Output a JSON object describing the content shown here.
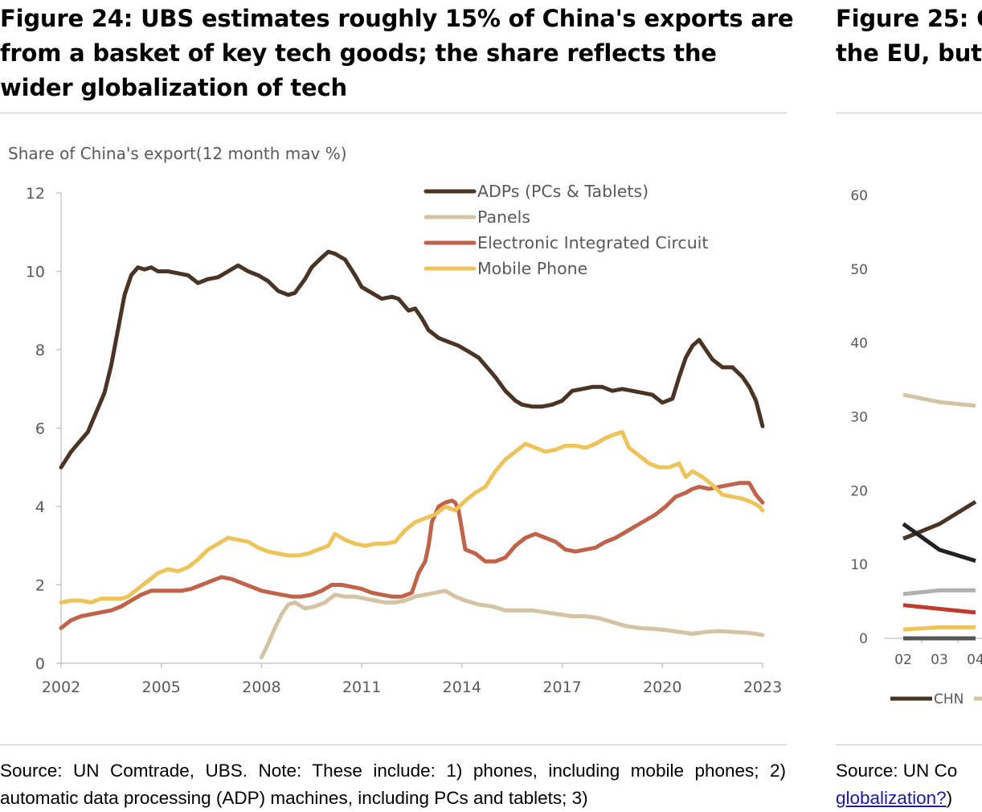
{
  "figure_left": {
    "title": "Figure 24: UBS estimates roughly 15% of China's exports are from a basket of key tech goods; the share reflects the wider globalization of tech",
    "source": "Source: UN Comtrade, UBS. Note: These include: 1) phones, including mobile phones; 2) automatic data processing (ADP) machines, including PCs and tablets; 3)"
  },
  "figure_right": {
    "title": "Figure 25: C",
    "title_line2": "the EU, but",
    "source_prefix": "Source: UN Co",
    "source_link": "globalization?",
    "source_suffix": ")"
  },
  "chart_data": [
    {
      "type": "line",
      "title": "",
      "ylabel": "Share of China's export(12 month mav %)",
      "xlabel": "",
      "xlim": [
        2002,
        2023
      ],
      "ylim": [
        0,
        12
      ],
      "yticks": [
        "0",
        "2",
        "4",
        "6",
        "8",
        "10",
        "12"
      ],
      "xticks": [
        "2002",
        "2005",
        "2008",
        "2011",
        "2014",
        "2017",
        "2020",
        "2023"
      ],
      "grid": false,
      "legend": "top-center",
      "series": [
        {
          "name": "ADPs (PCs & Tablets)",
          "color": "#4a3426",
          "x": [
            2002.0,
            2002.3,
            2002.6,
            2002.8,
            2003.0,
            2003.3,
            2003.5,
            2003.7,
            2003.9,
            2004.1,
            2004.3,
            2004.5,
            2004.7,
            2004.9,
            2005.2,
            2005.5,
            2005.8,
            2006.1,
            2006.4,
            2006.7,
            2007.0,
            2007.3,
            2007.6,
            2007.9,
            2008.2,
            2008.5,
            2008.8,
            2009.0,
            2009.3,
            2009.5,
            2009.8,
            2010.0,
            2010.2,
            2010.5,
            2010.8,
            2011.0,
            2011.3,
            2011.6,
            2011.9,
            2012.1,
            2012.4,
            2012.6,
            2012.8,
            2013.0,
            2013.3,
            2013.6,
            2013.9,
            2014.2,
            2014.5,
            2014.8,
            2015.0,
            2015.3,
            2015.6,
            2015.8,
            2016.1,
            2016.4,
            2016.7,
            2017.0,
            2017.3,
            2017.6,
            2017.9,
            2018.2,
            2018.5,
            2018.8,
            2019.1,
            2019.4,
            2019.7,
            2020.0,
            2020.3,
            2020.5,
            2020.7,
            2020.9,
            2021.1,
            2021.3,
            2021.5,
            2021.8,
            2022.1,
            2022.4,
            2022.6,
            2022.8,
            2023.0
          ],
          "values": [
            5.0,
            5.4,
            5.7,
            5.9,
            6.3,
            6.9,
            7.6,
            8.5,
            9.4,
            9.9,
            10.1,
            10.05,
            10.1,
            10.0,
            10.0,
            9.95,
            9.9,
            9.7,
            9.8,
            9.85,
            10.0,
            10.15,
            10.0,
            9.9,
            9.75,
            9.5,
            9.4,
            9.45,
            9.8,
            10.1,
            10.35,
            10.5,
            10.45,
            10.3,
            9.9,
            9.6,
            9.45,
            9.3,
            9.35,
            9.3,
            9.0,
            9.05,
            8.8,
            8.5,
            8.3,
            8.2,
            8.1,
            7.95,
            7.8,
            7.5,
            7.3,
            6.95,
            6.7,
            6.6,
            6.55,
            6.55,
            6.6,
            6.7,
            6.95,
            7.0,
            7.05,
            7.05,
            6.95,
            7.0,
            6.95,
            6.9,
            6.85,
            6.65,
            6.75,
            7.3,
            7.8,
            8.1,
            8.25,
            8.0,
            7.75,
            7.55,
            7.55,
            7.3,
            7.05,
            6.7,
            6.05
          ]
        },
        {
          "name": "Panels",
          "color": "#d4c4a4",
          "x": [
            2008.0,
            2008.2,
            2008.4,
            2008.6,
            2008.8,
            2009.0,
            2009.3,
            2009.6,
            2009.9,
            2010.2,
            2010.5,
            2010.8,
            2011.1,
            2011.4,
            2011.7,
            2012.0,
            2012.3,
            2012.6,
            2012.9,
            2013.2,
            2013.5,
            2013.8,
            2014.1,
            2014.5,
            2014.9,
            2015.3,
            2015.7,
            2016.1,
            2016.5,
            2016.9,
            2017.3,
            2017.7,
            2018.1,
            2018.5,
            2018.9,
            2019.3,
            2019.7,
            2020.1,
            2020.5,
            2020.9,
            2021.3,
            2021.7,
            2022.1,
            2022.5,
            2022.8,
            2023.0
          ],
          "values": [
            0.15,
            0.5,
            0.9,
            1.25,
            1.5,
            1.55,
            1.4,
            1.45,
            1.55,
            1.75,
            1.7,
            1.7,
            1.65,
            1.6,
            1.55,
            1.55,
            1.6,
            1.7,
            1.75,
            1.8,
            1.85,
            1.7,
            1.6,
            1.5,
            1.45,
            1.35,
            1.35,
            1.35,
            1.3,
            1.25,
            1.2,
            1.2,
            1.15,
            1.05,
            0.95,
            0.9,
            0.88,
            0.85,
            0.8,
            0.75,
            0.8,
            0.82,
            0.8,
            0.78,
            0.75,
            0.72
          ]
        },
        {
          "name": "Electronic Integrated Circuit",
          "color": "#c0634a",
          "x": [
            2002.0,
            2002.3,
            2002.6,
            2002.9,
            2003.2,
            2003.5,
            2003.8,
            2004.1,
            2004.4,
            2004.7,
            2005.0,
            2005.3,
            2005.6,
            2005.9,
            2006.2,
            2006.5,
            2006.8,
            2007.1,
            2007.4,
            2007.7,
            2008.0,
            2008.3,
            2008.6,
            2008.9,
            2009.2,
            2009.5,
            2009.8,
            2010.1,
            2010.4,
            2010.7,
            2011.0,
            2011.3,
            2011.6,
            2011.9,
            2012.2,
            2012.5,
            2012.7,
            2012.9,
            2013.0,
            2013.1,
            2013.3,
            2013.5,
            2013.7,
            2013.8,
            2013.9,
            2014.1,
            2014.4,
            2014.7,
            2015.0,
            2015.3,
            2015.6,
            2015.9,
            2016.2,
            2016.5,
            2016.8,
            2017.1,
            2017.4,
            2017.7,
            2018.0,
            2018.3,
            2018.6,
            2018.9,
            2019.2,
            2019.5,
            2019.8,
            2020.1,
            2020.4,
            2020.7,
            2020.9,
            2021.1,
            2021.4,
            2021.7,
            2022.0,
            2022.3,
            2022.6,
            2022.8,
            2023.0
          ],
          "values": [
            0.9,
            1.1,
            1.2,
            1.25,
            1.3,
            1.35,
            1.45,
            1.6,
            1.75,
            1.85,
            1.85,
            1.85,
            1.85,
            1.9,
            2.0,
            2.1,
            2.2,
            2.15,
            2.05,
            1.95,
            1.85,
            1.8,
            1.75,
            1.7,
            1.7,
            1.75,
            1.85,
            2.0,
            2.0,
            1.95,
            1.9,
            1.8,
            1.75,
            1.7,
            1.7,
            1.8,
            2.3,
            2.6,
            3.0,
            3.6,
            4.0,
            4.1,
            4.15,
            4.1,
            3.9,
            2.9,
            2.8,
            2.6,
            2.6,
            2.7,
            3.0,
            3.2,
            3.3,
            3.2,
            3.1,
            2.9,
            2.85,
            2.9,
            2.95,
            3.1,
            3.2,
            3.35,
            3.5,
            3.65,
            3.8,
            4.0,
            4.25,
            4.35,
            4.45,
            4.5,
            4.45,
            4.5,
            4.55,
            4.6,
            4.6,
            4.3,
            4.1
          ]
        },
        {
          "name": "Mobile Phone",
          "color": "#eec35a",
          "x": [
            2002.0,
            2002.3,
            2002.6,
            2002.9,
            2003.2,
            2003.5,
            2003.8,
            2004.0,
            2004.3,
            2004.6,
            2004.9,
            2005.2,
            2005.5,
            2005.8,
            2006.1,
            2006.4,
            2006.7,
            2007.0,
            2007.3,
            2007.6,
            2007.9,
            2008.2,
            2008.5,
            2008.8,
            2009.1,
            2009.4,
            2009.7,
            2010.0,
            2010.2,
            2010.5,
            2010.8,
            2011.1,
            2011.4,
            2011.7,
            2012.0,
            2012.3,
            2012.6,
            2012.9,
            2013.2,
            2013.5,
            2013.8,
            2014.1,
            2014.4,
            2014.7,
            2015.0,
            2015.3,
            2015.6,
            2015.9,
            2016.2,
            2016.5,
            2016.8,
            2017.1,
            2017.4,
            2017.7,
            2018.0,
            2018.3,
            2018.6,
            2018.8,
            2019.0,
            2019.3,
            2019.6,
            2019.9,
            2020.2,
            2020.5,
            2020.7,
            2020.9,
            2021.2,
            2021.5,
            2021.8,
            2022.1,
            2022.4,
            2022.7,
            2022.9,
            2023.0
          ],
          "values": [
            1.55,
            1.6,
            1.6,
            1.55,
            1.65,
            1.65,
            1.65,
            1.7,
            1.9,
            2.1,
            2.3,
            2.4,
            2.35,
            2.45,
            2.65,
            2.9,
            3.05,
            3.2,
            3.15,
            3.1,
            2.95,
            2.85,
            2.8,
            2.75,
            2.75,
            2.8,
            2.9,
            3.0,
            3.3,
            3.15,
            3.05,
            3.0,
            3.05,
            3.05,
            3.1,
            3.4,
            3.6,
            3.7,
            3.8,
            4.0,
            3.9,
            4.15,
            4.35,
            4.5,
            4.9,
            5.2,
            5.4,
            5.6,
            5.5,
            5.4,
            5.45,
            5.55,
            5.55,
            5.5,
            5.6,
            5.75,
            5.85,
            5.9,
            5.5,
            5.3,
            5.1,
            5.0,
            5.0,
            5.1,
            4.75,
            4.9,
            4.75,
            4.55,
            4.3,
            4.25,
            4.2,
            4.1,
            4.0,
            3.9
          ]
        }
      ]
    },
    {
      "type": "line",
      "title": "",
      "yticks": [
        "0",
        "10",
        "20",
        "30",
        "40",
        "50",
        "60"
      ],
      "xticks": [
        "02",
        "03",
        "04"
      ],
      "ylim": [
        0,
        60
      ],
      "legend": "bottom",
      "series": [
        {
          "name": "CHN",
          "color": "#4a3426",
          "x": [
            2,
            3,
            4
          ],
          "values": [
            13.5,
            15.5,
            18.5
          ]
        },
        {
          "name": "",
          "color": "#222222",
          "x": [
            2,
            3,
            4
          ],
          "values": [
            15.5,
            12.0,
            10.5
          ]
        },
        {
          "name": "",
          "color": "#d4c4a4",
          "x": [
            2,
            3,
            4
          ],
          "values": [
            33.0,
            32.0,
            31.5
          ]
        },
        {
          "name": "",
          "color": "#b0b0b0",
          "x": [
            2,
            3,
            4
          ],
          "values": [
            6.0,
            6.5,
            6.5
          ]
        },
        {
          "name": "",
          "color": "#c0392b",
          "x": [
            2,
            3,
            4
          ],
          "values": [
            4.5,
            4.0,
            3.5
          ]
        },
        {
          "name": "",
          "color": "#eec35a",
          "x": [
            2,
            3,
            4
          ],
          "values": [
            1.2,
            1.5,
            1.5
          ]
        },
        {
          "name": "",
          "color": "#555555",
          "x": [
            2,
            3,
            4
          ],
          "values": [
            0,
            0,
            0
          ]
        }
      ]
    }
  ]
}
